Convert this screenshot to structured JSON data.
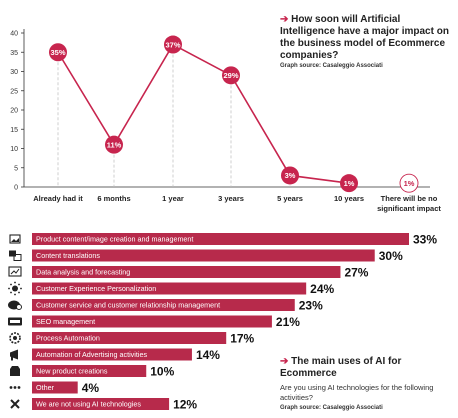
{
  "accent": "#c7254e",
  "chart_data": [
    {
      "type": "line",
      "title": "How soon will Artificial Intelligence have a major impact on the business model of Ecommerce companies?",
      "source": "Graph source: Casaleggio Associati",
      "categories": [
        "Already had it",
        "6 months",
        "1 year",
        "3 years",
        "5 years",
        "10 years",
        "There will be no significant impact"
      ],
      "values": [
        35,
        11,
        37,
        29,
        3,
        1,
        1
      ],
      "labels": [
        "35%",
        "11%",
        "37%",
        "29%",
        "3%",
        "1%",
        "1%"
      ],
      "yticks": [
        "0",
        "5",
        "10",
        "15",
        "20",
        "25",
        "30",
        "35",
        "40"
      ],
      "ylim": [
        0,
        40
      ],
      "grid": false,
      "color": "#c7254e"
    },
    {
      "type": "bar",
      "title": "The main uses of AI for Ecommerce",
      "subtitle": "Are you using AI technologies for the following activities?",
      "source": "Graph source: Casaleggio Associati",
      "categories": [
        "Product content/image creation and management",
        "Content translations",
        "Data analysis and forecasting",
        "Customer Experience Personalization",
        "Customer service and customer relationship management",
        "SEO management",
        "Process Automation",
        "Automation of Advertising activities",
        "New product creations",
        "Other",
        "We are not using AI technologies"
      ],
      "values": [
        33,
        30,
        27,
        24,
        23,
        21,
        17,
        14,
        10,
        4,
        12
      ],
      "labels": [
        "33%",
        "30%",
        "27%",
        "24%",
        "23%",
        "21%",
        "17%",
        "14%",
        "10%",
        "4%",
        "12%"
      ],
      "icons": [
        "image-icon",
        "translate-icon",
        "analytics-icon",
        "personalization-icon",
        "chat-icon",
        "seo-icon",
        "automation-icon",
        "megaphone-icon",
        "new-product-icon",
        "more-icon",
        "close-icon"
      ],
      "color": "#b72a4b"
    }
  ]
}
